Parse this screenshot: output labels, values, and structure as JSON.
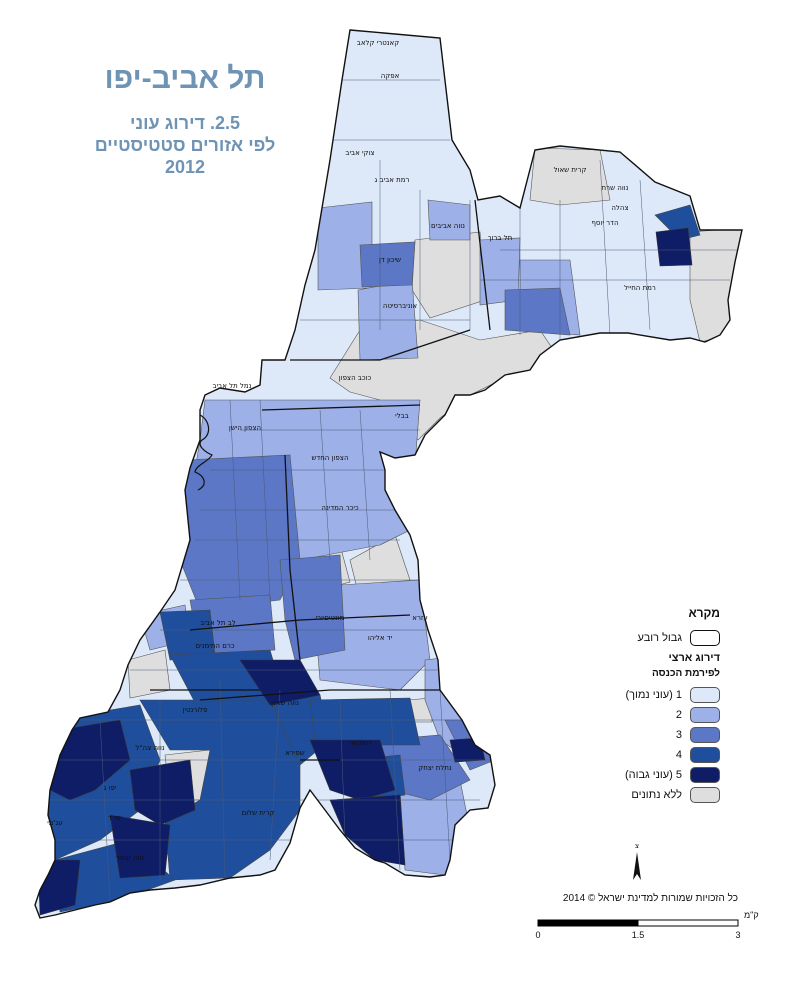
{
  "title": "תל אביב-יפו",
  "subtitle": {
    "line1": "2.5. דירוג עוני",
    "line2": "לפי אזורים סטטיסטיים",
    "year": "2012"
  },
  "legend": {
    "header": "מקרא",
    "boundary_label": "גבול רובע",
    "ranking_title": "דירוג ארצי",
    "ranking_subtitle": "לפירמת הכנסה",
    "classes": [
      {
        "label": "1 (עוני נמוך)",
        "color": "#dde9f8"
      },
      {
        "label": "2",
        "color": "#9db0e8"
      },
      {
        "label": "3",
        "color": "#5b77c5"
      },
      {
        "label": "4",
        "color": "#1f4f9c"
      },
      {
        "label": "5 (עוני גבוה)",
        "color": "#0f1d66"
      },
      {
        "label": "ללא נתונים",
        "color": "#dedede"
      }
    ]
  },
  "copyright": "כל הזכויות שמורות למדינת ישראל © 2014",
  "scale": {
    "unit": "ק\"מ",
    "ticks": [
      "0",
      "1.5",
      "3"
    ]
  },
  "north_symbol": "north-arrow",
  "neighborhoods": [
    "קאנטרי קלאב",
    "אפקה",
    "רמת אביב ג",
    "נווה אביבים",
    "קרית שאול",
    "צהלה",
    "רמת החייל",
    "תל ברוך",
    "צוקי אביב",
    "אוניברסיטה",
    "שיכון דן",
    "כוכב הצפון",
    "נמל תל אביב",
    "הצפון הישן",
    "הצפון החדש",
    "כיכר המדינה",
    "בבלי",
    "לב תל אביב",
    "מונטיפיורי",
    "יד אליהו",
    "נווה צה\"ל",
    "שפירא",
    "כרם התימנים",
    "נווה שאנן",
    "התקווה",
    "יפו ג",
    "יפו ד",
    "עג'מי",
    "נווה עופר",
    "קרית שלום",
    "הדר יוסף",
    "נווה שרת",
    "עזרא",
    "פלורנטין",
    "נחלת יצחק"
  ]
}
